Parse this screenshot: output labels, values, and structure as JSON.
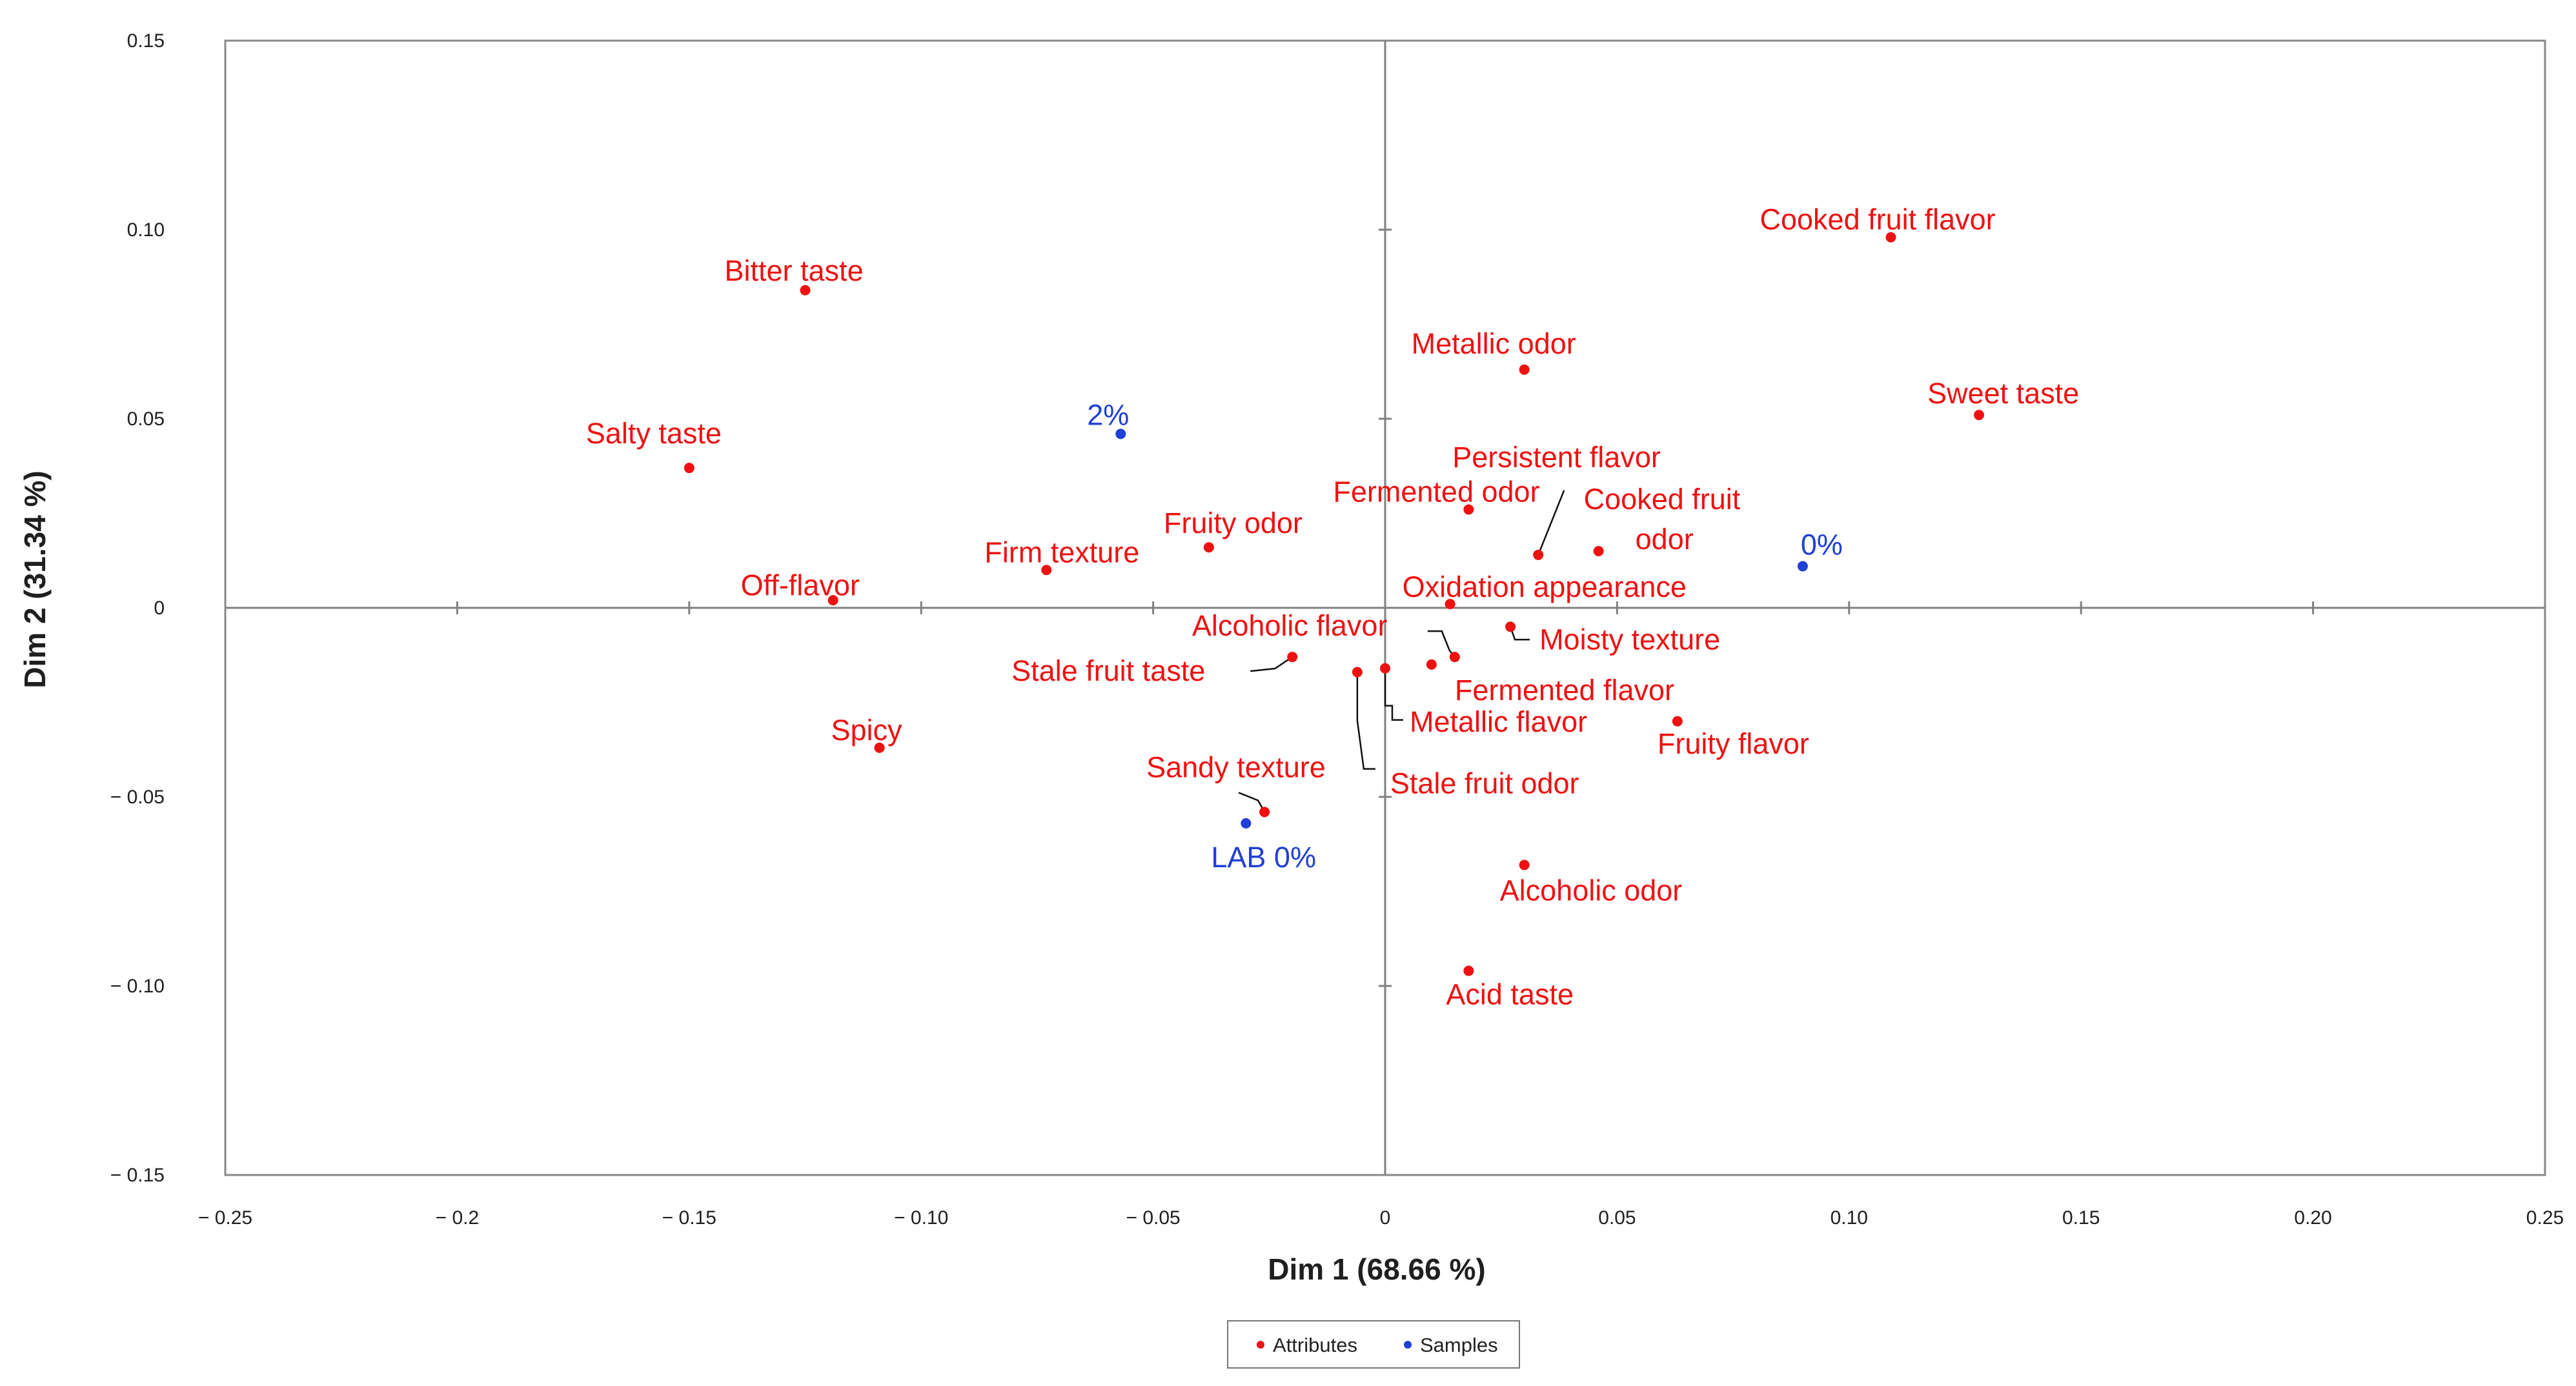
{
  "chart_data": {
    "type": "scatter",
    "title": "",
    "xlabel": "Dim 1 (68.66 %)",
    "ylabel": "Dim 2 (31.34 %)",
    "xlim": [
      -0.25,
      0.25
    ],
    "ylim": [
      -0.15,
      0.15
    ],
    "x_ticks": [
      "− 0.25",
      "− 0.2",
      "− 0.15",
      "− 0.10",
      "− 0.05",
      "0",
      "0.05",
      "0.10",
      "0.15",
      "0.20",
      "0.25"
    ],
    "y_ticks": [
      "0.15",
      "0.10",
      "0.05",
      "0",
      "− 0.05",
      "− 0.10",
      "− 0.15"
    ],
    "grid": false,
    "legend_position": "bottom-center",
    "colors": {
      "Attributes": "#ee1111",
      "Samples": "#1f3fd6",
      "leader": "#111111",
      "axis": "#808080"
    },
    "series": [
      {
        "name": "Attributes",
        "points": [
          {
            "label": "Bitter taste",
            "x": -0.125,
            "y": 0.084
          },
          {
            "label": "Salty taste",
            "x": -0.15,
            "y": 0.037
          },
          {
            "label": "Off-flavor",
            "x": -0.119,
            "y": 0.002
          },
          {
            "label": "Spicy",
            "x": -0.109,
            "y": -0.037
          },
          {
            "label": "Firm texture",
            "x": -0.073,
            "y": 0.01
          },
          {
            "label": "Fruity odor",
            "x": -0.038,
            "y": 0.016
          },
          {
            "label": "Stale fruit taste",
            "x": -0.02,
            "y": -0.013
          },
          {
            "label": "Sandy texture",
            "x": -0.026,
            "y": -0.054
          },
          {
            "label": "Alcoholic flavor",
            "x": 0.015,
            "y": -0.013
          },
          {
            "label": "Stale fruit odor",
            "x": -0.006,
            "y": -0.017
          },
          {
            "label": "Metallic flavor",
            "x": 0,
            "y": -0.016
          },
          {
            "label": "Fermented flavor",
            "x": 0.01,
            "y": -0.015
          },
          {
            "label": "Moisty texture",
            "x": 0.027,
            "y": -0.005
          },
          {
            "label": "Oxidation appearance",
            "x": 0.014,
            "y": 0.001
          },
          {
            "label": "Fermented odor",
            "x": 0.018,
            "y": 0.026
          },
          {
            "label": "Persistent flavor",
            "x": 0.033,
            "y": 0.014
          },
          {
            "label": "Cooked fruit odor",
            "x": 0.046,
            "y": 0.015
          },
          {
            "label": "Metallic odor",
            "x": 0.03,
            "y": 0.063
          },
          {
            "label": "Cooked fruit flavor",
            "x": 0.109,
            "y": 0.098
          },
          {
            "label": "Sweet taste",
            "x": 0.128,
            "y": 0.051
          },
          {
            "label": "Fruity flavor",
            "x": 0.063,
            "y": -0.03
          },
          {
            "label": "Alcoholic odor",
            "x": 0.03,
            "y": -0.068
          },
          {
            "label": "Acid taste",
            "x": 0.018,
            "y": -0.096
          }
        ]
      },
      {
        "name": "Samples",
        "points": [
          {
            "label": "2%",
            "x": -0.057,
            "y": 0.046
          },
          {
            "label": "0%",
            "x": 0.09,
            "y": 0.011
          },
          {
            "label": "LAB 0%",
            "x": -0.03,
            "y": -0.057
          }
        ]
      }
    ]
  }
}
